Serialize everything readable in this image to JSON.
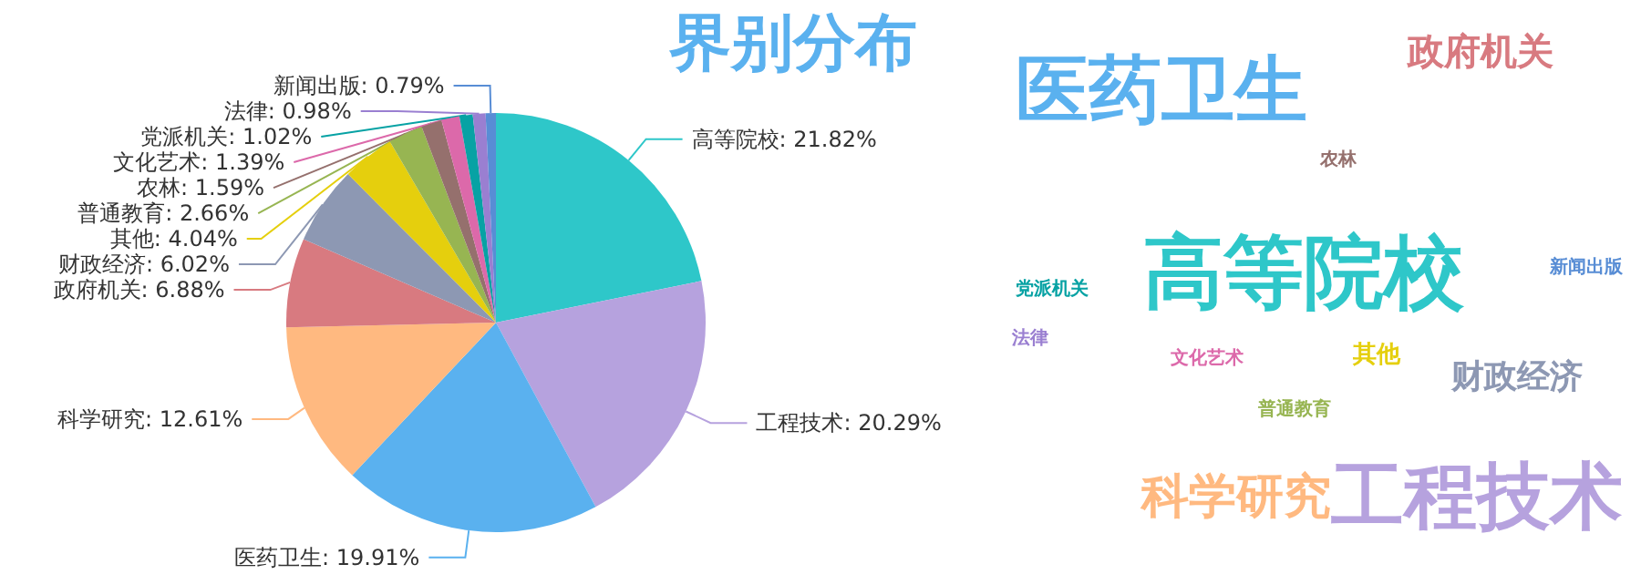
{
  "chart_data": [
    {
      "type": "pie",
      "title": "界别分布",
      "categories": [
        "高等院校",
        "工程技术",
        "医药卫生",
        "科学研究",
        "政府机关",
        "财政经济",
        "其他",
        "普通教育",
        "农林",
        "文化艺术",
        "党派机关",
        "法律",
        "新闻出版"
      ],
      "values": [
        21.82,
        20.29,
        19.91,
        12.61,
        6.88,
        6.02,
        4.04,
        2.66,
        1.59,
        1.39,
        1.02,
        0.98,
        0.79
      ],
      "colors": [
        "#2ec7c9",
        "#b6a2de",
        "#5ab1ef",
        "#ffb980",
        "#d87a80",
        "#8d98b3",
        "#e5cf0d",
        "#97b552",
        "#95706d",
        "#dc69aa",
        "#07a2a4",
        "#9a7fd1",
        "#588dd5"
      ],
      "value_labels": [
        ": 21.82%",
        ": 20.29%",
        ": 19.91%",
        ": 12.61%",
        ": 6.88%",
        ": 6.02%",
        ": 4.04%",
        ": 2.66%",
        ": 1.59%",
        ": 1.39%",
        ": 1.02%",
        ": 0.98%",
        ": 0.79%"
      ],
      "legend": false
    },
    {
      "type": "other",
      "categories": [
        "高等院校",
        "工程技术",
        "医药卫生",
        "科学研究",
        "政府机关",
        "财政经济",
        "其他",
        "普通教育",
        "农林",
        "文化艺术",
        "党派机关",
        "法律",
        "新闻出版"
      ],
      "colors": [
        "#2ec7c9",
        "#b6a2de",
        "#5ab1ef",
        "#ffb980",
        "#d87a80",
        "#8d98b3",
        "#e5cf0d",
        "#97b552",
        "#95706d",
        "#dc69aa",
        "#07a2a4",
        "#9a7fd1",
        "#588dd5"
      ]
    }
  ]
}
